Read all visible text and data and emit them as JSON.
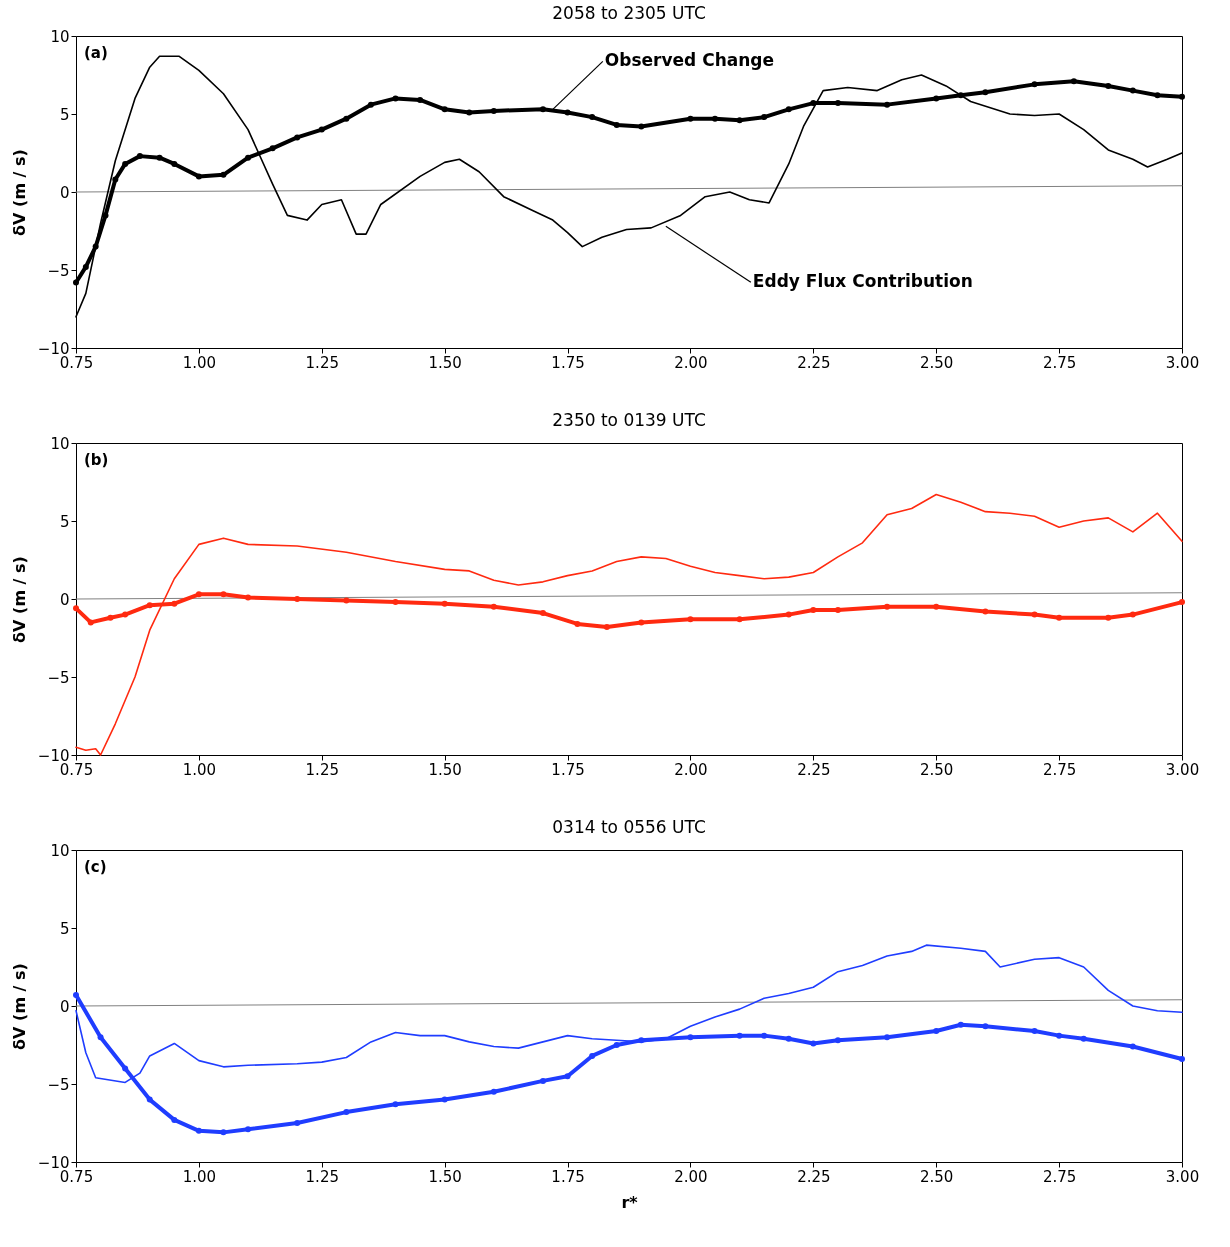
{
  "chart_data": [
    {
      "type": "line",
      "title": "2058 to 2305 UTC",
      "ylabel": "δV (m / s)",
      "xlim": [
        0.75,
        3.0
      ],
      "ylim": [
        -10,
        10
      ],
      "xticks": [
        0.75,
        {
          "value": 1,
          "label": "1.00"
        },
        1.25,
        {
          "value": 1.5,
          "label": "1.50"
        },
        1.75,
        {
          "value": 2,
          "label": "2.00"
        },
        2.25,
        {
          "value": 2.5,
          "label": "2.50"
        },
        2.75,
        {
          "value": 3,
          "label": "3.00"
        }
      ],
      "yticks": [
        -10,
        -5,
        0,
        5,
        10
      ],
      "grid": false,
      "annotations": [
        "(a)",
        {
          "text": "Observed Change",
          "x": 1.72,
          "y": 5.3
        },
        {
          "text": "Eddy Flux Contribution",
          "x": 1.95,
          "y": -2.2
        }
      ],
      "series": [
        {
          "color": "#808080",
          "x": [
            0.75,
            3.0
          ],
          "values": [
            0,
            0.4
          ]
        },
        {
          "color": "#000000",
          "marker": "circle",
          "x": [
            0.75,
            0.77,
            0.79,
            0.81,
            0.83,
            0.85,
            0.88,
            0.92,
            0.95,
            1.0,
            1.05,
            1.1,
            1.15,
            1.2,
            1.25,
            1.3,
            1.35,
            1.4,
            1.45,
            1.5,
            1.55,
            1.6,
            1.7,
            1.75,
            1.8,
            1.85,
            1.9,
            2.0,
            2.05,
            2.1,
            2.15,
            2.2,
            2.25,
            2.3,
            2.4,
            2.5,
            2.55,
            2.6,
            2.7,
            2.78,
            2.85,
            2.9,
            2.95,
            3.0
          ],
          "values": [
            -5.8,
            -4.8,
            -3.5,
            -1.5,
            0.8,
            1.8,
            2.3,
            2.2,
            1.8,
            1.0,
            1.1,
            2.2,
            2.8,
            3.5,
            4.0,
            4.7,
            5.6,
            6.0,
            5.9,
            5.3,
            5.1,
            5.2,
            5.3,
            5.1,
            4.8,
            4.3,
            4.2,
            4.7,
            4.7,
            4.6,
            4.8,
            5.3,
            5.7,
            5.7,
            5.6,
            6.0,
            6.2,
            6.4,
            6.9,
            7.1,
            6.8,
            6.5,
            6.2,
            6.1
          ]
        },
        {
          "color": "#000000",
          "x": [
            0.75,
            0.77,
            0.8,
            0.83,
            0.87,
            0.9,
            0.92,
            0.96,
            1.0,
            1.05,
            1.1,
            1.15,
            1.18,
            1.22,
            1.25,
            1.29,
            1.32,
            1.34,
            1.37,
            1.45,
            1.5,
            1.53,
            1.57,
            1.62,
            1.68,
            1.72,
            1.75,
            1.78,
            1.82,
            1.87,
            1.92,
            1.98,
            2.03,
            2.08,
            2.12,
            2.16,
            2.2,
            2.23,
            2.27,
            2.32,
            2.38,
            2.43,
            2.47,
            2.52,
            2.57,
            2.65,
            2.7,
            2.75,
            2.8,
            2.85,
            2.9,
            2.93,
            2.97,
            3.0
          ],
          "values": [
            -8,
            -6.5,
            -2,
            2,
            6,
            8,
            8.7,
            8.7,
            7.8,
            6.3,
            4,
            0.5,
            -1.5,
            -1.8,
            -0.8,
            -0.5,
            -2.7,
            -2.7,
            -0.8,
            1.0,
            1.9,
            2.1,
            1.3,
            -0.3,
            -1.2,
            -1.8,
            -2.6,
            -3.5,
            -2.9,
            -2.4,
            -2.3,
            -1.5,
            -0.3,
            0,
            -0.5,
            -0.7,
            1.8,
            4.2,
            6.5,
            6.7,
            6.5,
            7.2,
            7.5,
            6.8,
            5.8,
            5.0,
            4.9,
            5.0,
            4.0,
            2.7,
            2.1,
            1.6,
            2.1,
            2.5
          ]
        }
      ]
    },
    {
      "type": "line",
      "title": "2350 to 0139 UTC",
      "ylabel": "δV (m / s)",
      "xlim": [
        0.75,
        3.0
      ],
      "ylim": [
        -10,
        10
      ],
      "xticks": [
        0.75,
        {
          "value": 1,
          "label": "1.00"
        },
        1.25,
        {
          "value": 1.5,
          "label": "1.50"
        },
        1.75,
        {
          "value": 2,
          "label": "2.00"
        },
        2.25,
        {
          "value": 2.5,
          "label": "2.50"
        },
        2.75,
        {
          "value": 3,
          "label": "3.00"
        }
      ],
      "yticks": [
        -10,
        -5,
        0,
        5,
        10
      ],
      "grid": false,
      "annotations": [
        "(b)"
      ],
      "series": [
        {
          "color": "#808080",
          "x": [
            0.75,
            3.0
          ],
          "values": [
            0,
            0.4
          ]
        },
        {
          "color": "#ff2a10",
          "x": [
            0.75,
            0.77,
            0.79,
            0.8,
            0.83,
            0.87,
            0.9,
            0.95,
            1.0,
            1.05,
            1.1,
            1.2,
            1.3,
            1.4,
            1.5,
            1.55,
            1.6,
            1.65,
            1.7,
            1.75,
            1.8,
            1.85,
            1.9,
            1.95,
            2.0,
            2.05,
            2.1,
            2.15,
            2.2,
            2.25,
            2.3,
            2.35,
            2.4,
            2.45,
            2.5,
            2.55,
            2.6,
            2.65,
            2.7,
            2.75,
            2.8,
            2.85,
            2.9,
            2.95,
            3.0
          ],
          "values": [
            -9.5,
            -9.7,
            -9.6,
            -10,
            -8,
            -5,
            -2,
            1.3,
            3.5,
            3.9,
            3.5,
            3.4,
            3.0,
            2.4,
            1.9,
            1.8,
            1.2,
            0.9,
            1.1,
            1.5,
            1.8,
            2.4,
            2.7,
            2.6,
            2.1,
            1.7,
            1.5,
            1.3,
            1.4,
            1.7,
            2.7,
            3.6,
            5.4,
            5.8,
            6.7,
            6.2,
            5.6,
            5.5,
            5.3,
            4.6,
            5.0,
            5.2,
            4.3,
            5.5,
            3.7
          ]
        },
        {
          "color": "#ff2a10",
          "marker": "circle",
          "x": [
            0.75,
            0.78,
            0.82,
            0.85,
            0.9,
            0.95,
            1.0,
            1.05,
            1.1,
            1.2,
            1.3,
            1.4,
            1.5,
            1.6,
            1.7,
            1.77,
            1.83,
            1.9,
            2.0,
            2.1,
            2.2,
            2.25,
            2.3,
            2.4,
            2.5,
            2.6,
            2.7,
            2.75,
            2.85,
            2.9,
            3.0
          ],
          "values": [
            -0.6,
            -1.5,
            -1.2,
            -1.0,
            -0.4,
            -0.3,
            0.3,
            0.3,
            0.1,
            0,
            -0.1,
            -0.2,
            -0.3,
            -0.5,
            -0.9,
            -1.6,
            -1.8,
            -1.5,
            -1.3,
            -1.3,
            -1.0,
            -0.7,
            -0.7,
            -0.5,
            -0.5,
            -0.8,
            -1.0,
            -1.2,
            -1.2,
            -1.0,
            -0.2
          ]
        }
      ]
    },
    {
      "type": "line",
      "title": "0314 to 0556 UTC",
      "xlabel": "r*",
      "ylabel": "δV (m / s)",
      "xlim": [
        0.75,
        3.0
      ],
      "ylim": [
        -10,
        10
      ],
      "xticks": [
        0.75,
        {
          "value": 1,
          "label": "1.00"
        },
        1.25,
        {
          "value": 1.5,
          "label": "1.50"
        },
        1.75,
        {
          "value": 2,
          "label": "2.00"
        },
        2.25,
        {
          "value": 2.5,
          "label": "2.50"
        },
        2.75,
        {
          "value": 3,
          "label": "3.00"
        }
      ],
      "yticks": [
        -10,
        -5,
        0,
        5,
        10
      ],
      "grid": false,
      "annotations": [
        "(c)"
      ],
      "series": [
        {
          "color": "#808080",
          "x": [
            0.75,
            3.0
          ],
          "values": [
            0,
            0.4
          ]
        },
        {
          "color": "#1f3dff",
          "x": [
            0.75,
            0.77,
            0.79,
            0.85,
            0.88,
            0.9,
            0.95,
            1.0,
            1.05,
            1.1,
            1.2,
            1.25,
            1.3,
            1.35,
            1.4,
            1.45,
            1.5,
            1.55,
            1.6,
            1.65,
            1.7,
            1.75,
            1.8,
            1.85,
            1.9,
            1.95,
            2.0,
            2.05,
            2.1,
            2.15,
            2.2,
            2.25,
            2.3,
            2.35,
            2.4,
            2.45,
            2.48,
            2.55,
            2.6,
            2.63,
            2.7,
            2.75,
            2.8,
            2.85,
            2.9,
            2.95,
            3.0
          ],
          "values": [
            -0.3,
            -3.0,
            -4.6,
            -4.9,
            -4.3,
            -3.2,
            -2.4,
            -3.5,
            -3.9,
            -3.8,
            -3.7,
            -3.6,
            -3.3,
            -2.3,
            -1.7,
            -1.9,
            -1.9,
            -2.3,
            -2.6,
            -2.7,
            -2.3,
            -1.9,
            -2.1,
            -2.2,
            -2.3,
            -2.1,
            -1.3,
            -0.7,
            -0.2,
            0.5,
            0.8,
            1.2,
            2.2,
            2.6,
            3.2,
            3.5,
            3.9,
            3.7,
            3.5,
            2.5,
            3.0,
            3.1,
            2.5,
            1.0,
            0.0,
            -0.3,
            -0.4
          ]
        },
        {
          "color": "#1f3dff",
          "marker": "circle",
          "x": [
            0.75,
            0.8,
            0.85,
            0.9,
            0.95,
            1.0,
            1.05,
            1.1,
            1.2,
            1.3,
            1.4,
            1.5,
            1.6,
            1.7,
            1.75,
            1.8,
            1.85,
            1.9,
            2.0,
            2.1,
            2.15,
            2.2,
            2.25,
            2.3,
            2.4,
            2.5,
            2.55,
            2.6,
            2.7,
            2.75,
            2.8,
            2.9,
            3.0
          ],
          "values": [
            0.7,
            -2,
            -4,
            -6,
            -7.3,
            -8,
            -8.1,
            -7.9,
            -7.5,
            -6.8,
            -6.3,
            -6.0,
            -5.5,
            -4.8,
            -4.5,
            -3.2,
            -2.5,
            -2.2,
            -2.0,
            -1.9,
            -1.9,
            -2.1,
            -2.4,
            -2.2,
            -2.0,
            -1.6,
            -1.2,
            -1.3,
            -1.6,
            -1.9,
            -2.1,
            -2.6,
            -3.4
          ]
        }
      ]
    }
  ]
}
